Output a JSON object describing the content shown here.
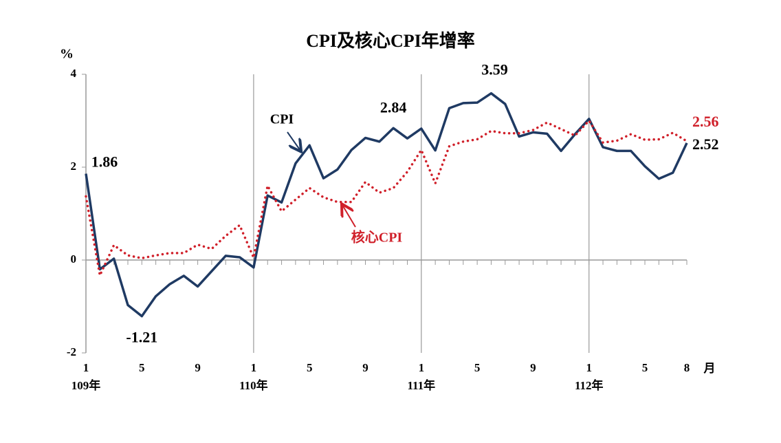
{
  "chart_data": {
    "type": "line",
    "title": "CPI及核心CPI年增率",
    "y_axis_label": "%",
    "x_axis_label": "月",
    "categories": [
      "1",
      null,
      null,
      null,
      "5",
      null,
      null,
      null,
      "9",
      null,
      null,
      null,
      "1",
      null,
      null,
      null,
      "5",
      null,
      null,
      null,
      "9",
      null,
      null,
      null,
      "1",
      null,
      null,
      null,
      "5",
      null,
      null,
      null,
      "9",
      null,
      null,
      null,
      "1",
      null,
      null,
      null,
      "5",
      null,
      null,
      "8"
    ],
    "year_labels": [
      "109年",
      "110年",
      "111年",
      "112年"
    ],
    "series": [
      {
        "name": "CPI",
        "color": "#1f3a63",
        "style": "solid",
        "values": [
          1.86,
          -0.2,
          0.03,
          -0.97,
          -1.21,
          -0.78,
          -0.52,
          -0.34,
          -0.57,
          -0.24,
          0.09,
          0.06,
          -0.16,
          1.39,
          1.24,
          2.08,
          2.47,
          1.76,
          1.95,
          2.37,
          2.63,
          2.55,
          2.84,
          2.62,
          2.83,
          2.36,
          3.27,
          3.38,
          3.39,
          3.59,
          3.36,
          2.66,
          2.75,
          2.72,
          2.35,
          2.71,
          3.04,
          2.43,
          2.35,
          2.35,
          2.02,
          1.75,
          1.88,
          2.52
        ],
        "value_labels": [
          "1.86",
          null,
          null,
          null,
          "-1.21",
          null,
          null,
          null,
          null,
          null,
          null,
          null,
          null,
          null,
          null,
          null,
          null,
          null,
          null,
          null,
          null,
          null,
          "2.84",
          null,
          null,
          null,
          null,
          null,
          null,
          "3.59",
          null,
          null,
          null,
          null,
          null,
          null,
          null,
          null,
          null,
          null,
          null,
          null,
          null,
          "2.52"
        ]
      },
      {
        "name": "核心CPI",
        "color": "#d0202a",
        "style": "dotted",
        "values": [
          1.37,
          -0.33,
          0.32,
          0.1,
          0.04,
          0.1,
          0.15,
          0.15,
          0.33,
          0.24,
          0.52,
          0.75,
          0.05,
          1.6,
          1.05,
          1.3,
          1.55,
          1.35,
          1.25,
          1.25,
          1.68,
          1.45,
          1.55,
          1.9,
          2.37,
          1.65,
          2.45,
          2.55,
          2.6,
          2.78,
          2.73,
          2.73,
          2.8,
          2.96,
          2.82,
          2.68,
          3.0,
          2.53,
          2.57,
          2.71,
          2.59,
          2.6,
          2.74,
          2.56
        ],
        "value_labels": [
          null,
          null,
          null,
          null,
          null,
          null,
          null,
          null,
          null,
          null,
          null,
          null,
          null,
          null,
          null,
          null,
          null,
          null,
          null,
          null,
          null,
          null,
          null,
          null,
          null,
          null,
          null,
          null,
          null,
          null,
          null,
          null,
          null,
          null,
          null,
          null,
          null,
          null,
          null,
          null,
          null,
          null,
          null,
          "2.56"
        ]
      }
    ],
    "ylim": [
      -2,
      4
    ],
    "yticks": [
      -2,
      0,
      2,
      4
    ]
  }
}
